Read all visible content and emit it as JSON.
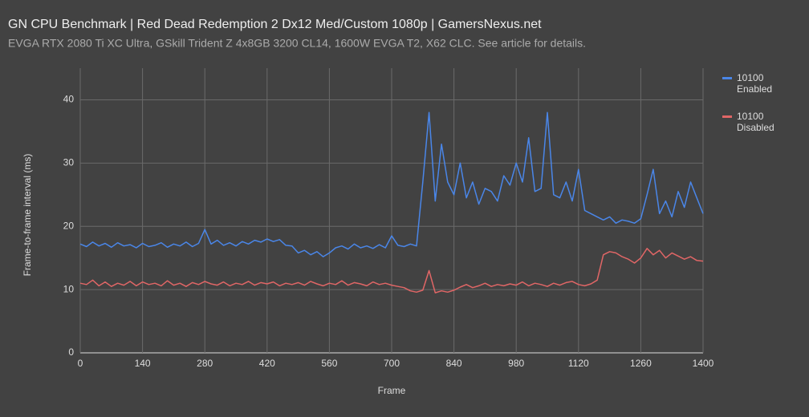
{
  "chart_data": {
    "type": "line",
    "title": "GN CPU Benchmark | Red Dead Redemption 2 Dx12 Med/Custom 1080p | GamersNexus.net",
    "subtitle": "EVGA RTX 2080 Ti XC Ultra, GSkill Trident Z 4x8GB 3200 CL14, 1600W EVGA T2, X62 CLC. See article for details.",
    "x_label": "Frame",
    "y_label": "Frame-to-frame interval (ms)",
    "x": [
      0,
      14,
      28,
      42,
      56,
      70,
      84,
      98,
      112,
      126,
      140,
      154,
      168,
      182,
      196,
      210,
      224,
      238,
      252,
      266,
      280,
      294,
      308,
      322,
      336,
      350,
      364,
      378,
      392,
      406,
      420,
      434,
      448,
      462,
      476,
      490,
      504,
      518,
      532,
      546,
      560,
      574,
      588,
      602,
      616,
      630,
      644,
      658,
      672,
      686,
      700,
      714,
      728,
      742,
      756,
      770,
      784,
      798,
      812,
      826,
      840,
      854,
      868,
      882,
      896,
      910,
      924,
      938,
      952,
      966,
      980,
      994,
      1008,
      1022,
      1036,
      1050,
      1064,
      1078,
      1092,
      1106,
      1120,
      1134,
      1148,
      1162,
      1176,
      1190,
      1204,
      1218,
      1232,
      1246,
      1260,
      1274,
      1288,
      1302,
      1316,
      1330,
      1344,
      1358,
      1372,
      1386,
      1400
    ],
    "series": [
      {
        "name": "10100 Enabled",
        "color": "#4a86e8",
        "values": [
          17.2,
          16.8,
          17.5,
          16.9,
          17.3,
          16.7,
          17.4,
          16.9,
          17.1,
          16.6,
          17.3,
          16.8,
          17.0,
          17.4,
          16.7,
          17.2,
          16.9,
          17.5,
          16.8,
          17.3,
          19.5,
          17.2,
          17.8,
          17.0,
          17.4,
          16.9,
          17.6,
          17.2,
          17.8,
          17.5,
          18.0,
          17.6,
          17.9,
          17.0,
          16.9,
          15.8,
          16.2,
          15.5,
          16.0,
          15.2,
          15.8,
          16.6,
          16.9,
          16.4,
          17.2,
          16.6,
          16.9,
          16.5,
          17.1,
          16.6,
          18.5,
          17.0,
          16.8,
          17.2,
          16.9,
          27.0,
          38.0,
          24.0,
          33.0,
          27.0,
          25.0,
          30.0,
          24.5,
          27.0,
          23.5,
          26.0,
          25.5,
          24.0,
          28.0,
          26.5,
          30.0,
          27.0,
          34.0,
          25.5,
          26.0,
          38.0,
          25.0,
          24.5,
          27.0,
          24.0,
          29.0,
          22.5,
          22.0,
          21.5,
          21.0,
          21.5,
          20.5,
          21.0,
          20.8,
          20.5,
          21.2,
          25.0,
          29.0,
          22.0,
          24.0,
          21.5,
          25.5,
          23.0,
          27.0,
          24.5,
          22.0
        ]
      },
      {
        "name": "10100 Disabled",
        "color": "#e06666",
        "values": [
          11.0,
          10.8,
          11.5,
          10.6,
          11.2,
          10.5,
          11.0,
          10.7,
          11.3,
          10.6,
          11.2,
          10.8,
          11.0,
          10.6,
          11.4,
          10.7,
          11.0,
          10.5,
          11.1,
          10.8,
          11.3,
          10.9,
          10.7,
          11.2,
          10.6,
          11.0,
          10.8,
          11.3,
          10.7,
          11.1,
          10.9,
          11.2,
          10.6,
          11.0,
          10.8,
          11.1,
          10.7,
          11.3,
          10.9,
          10.6,
          11.0,
          10.8,
          11.4,
          10.7,
          11.1,
          10.9,
          10.6,
          11.2,
          10.8,
          11.0,
          10.7,
          10.5,
          10.3,
          9.8,
          9.6,
          9.9,
          13.0,
          9.5,
          9.8,
          9.6,
          9.9,
          10.4,
          10.8,
          10.3,
          10.6,
          11.0,
          10.5,
          10.8,
          10.6,
          10.9,
          10.7,
          11.2,
          10.6,
          11.0,
          10.8,
          10.5,
          11.0,
          10.7,
          11.1,
          11.3,
          10.8,
          10.6,
          10.9,
          11.5,
          15.5,
          16.0,
          15.8,
          15.2,
          14.8,
          14.2,
          15.0,
          16.5,
          15.5,
          16.2,
          15.0,
          15.8,
          15.3,
          14.8,
          15.2,
          14.6,
          14.5
        ]
      }
    ],
    "xlim": [
      0,
      1400
    ],
    "xticks": [
      0,
      140,
      280,
      420,
      560,
      700,
      840,
      980,
      1120,
      1260,
      1400
    ],
    "ylim": [
      0,
      45
    ],
    "yticks": [
      0,
      10,
      20,
      30,
      40
    ],
    "grid": true,
    "legend": "right"
  }
}
